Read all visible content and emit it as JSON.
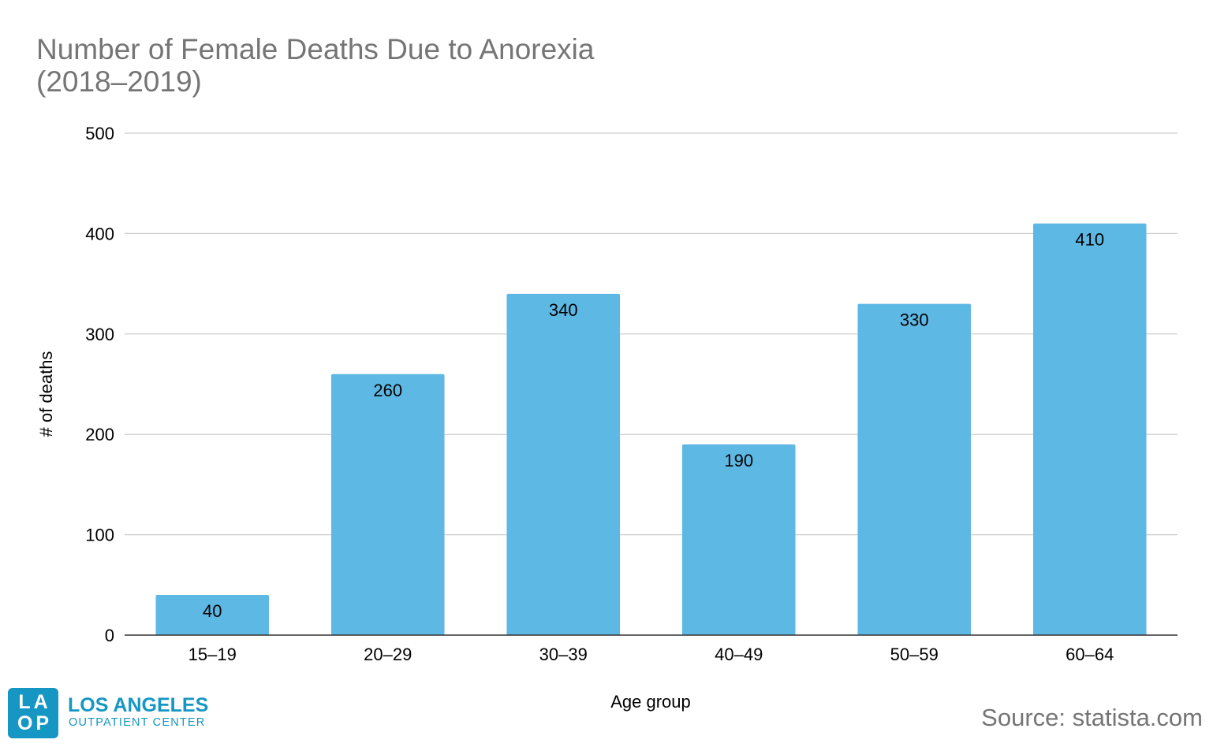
{
  "chart_data": {
    "type": "bar",
    "title_lines": [
      "Number of Female Deaths Due to Anorexia",
      "(2018–2019)"
    ],
    "xlabel": "Age group",
    "ylabel": "# of deaths",
    "categories": [
      "15–19",
      "20–29",
      "30–39",
      "40–49",
      "50–59",
      "60–64"
    ],
    "values": [
      40,
      260,
      340,
      190,
      330,
      410
    ],
    "data_labels": [
      "40",
      "260",
      "340",
      "190",
      "330",
      "410"
    ],
    "ylim": [
      0,
      500
    ],
    "yticks": [
      0,
      100,
      200,
      300,
      400,
      500
    ],
    "ytick_labels": [
      "0",
      "100",
      "200",
      "300",
      "400",
      "500"
    ],
    "grid": true,
    "legend": "none",
    "colors": {
      "bar": "#5eb8e4",
      "grid": "#cccccc",
      "axis": "#333333",
      "text": "#000000",
      "title": "#757575"
    }
  },
  "branding": {
    "logo_mark_lines": [
      "LA",
      "OP"
    ],
    "logo_name": "LOS ANGELES",
    "logo_subtitle": "OUTPATIENT CENTER",
    "logo_color": "#1596c3"
  },
  "source_text": "Source: statista.com"
}
